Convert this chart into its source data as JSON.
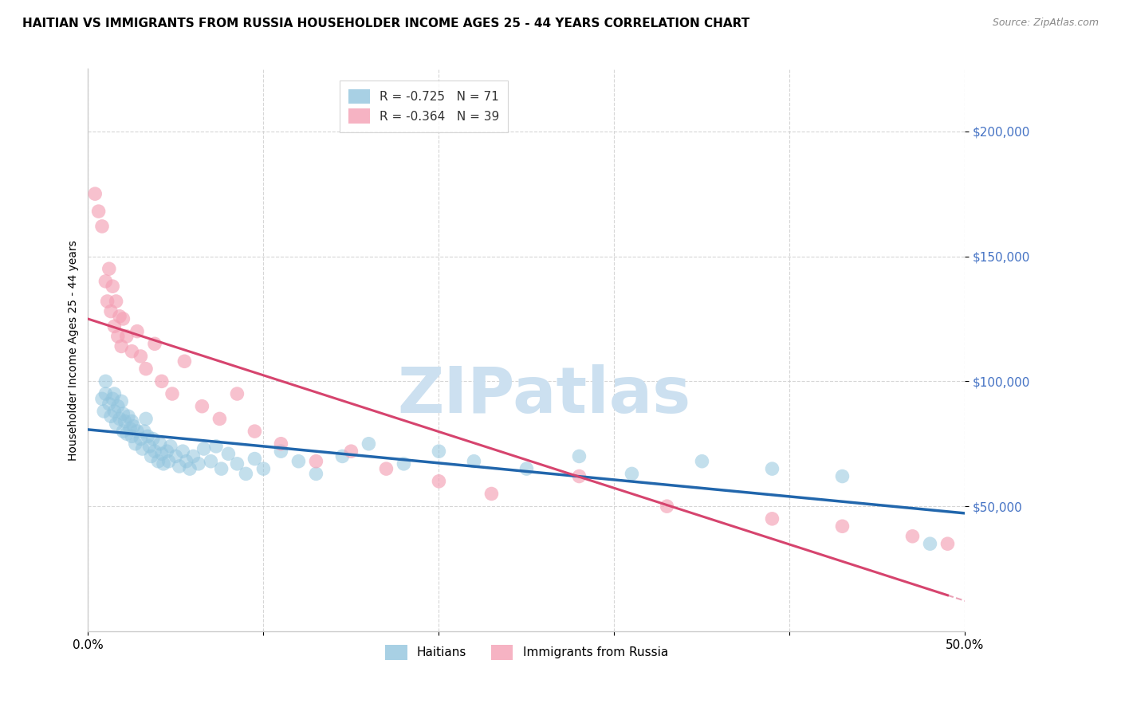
{
  "title": "HAITIAN VS IMMIGRANTS FROM RUSSIA HOUSEHOLDER INCOME AGES 25 - 44 YEARS CORRELATION CHART",
  "source": "Source: ZipAtlas.com",
  "ylabel": "Householder Income Ages 25 - 44 years",
  "ytick_values": [
    50000,
    100000,
    150000,
    200000
  ],
  "ymin": 0,
  "ymax": 225000,
  "xmin": 0.0,
  "xmax": 0.5,
  "watermark_text": "ZIPatlas",
  "blue_color": "#92c5de",
  "pink_color": "#f4a0b5",
  "trendline_blue": "#2166ac",
  "trendline_pink": "#d6446e",
  "scatter_blue_alpha": 0.55,
  "scatter_pink_alpha": 0.65,
  "haitian_x": [
    0.008,
    0.009,
    0.01,
    0.01,
    0.012,
    0.013,
    0.014,
    0.015,
    0.015,
    0.016,
    0.017,
    0.018,
    0.019,
    0.02,
    0.02,
    0.021,
    0.022,
    0.023,
    0.024,
    0.025,
    0.025,
    0.026,
    0.027,
    0.028,
    0.03,
    0.031,
    0.032,
    0.033,
    0.034,
    0.035,
    0.036,
    0.037,
    0.038,
    0.04,
    0.041,
    0.042,
    0.043,
    0.045,
    0.046,
    0.047,
    0.05,
    0.052,
    0.054,
    0.056,
    0.058,
    0.06,
    0.063,
    0.066,
    0.07,
    0.073,
    0.076,
    0.08,
    0.085,
    0.09,
    0.095,
    0.1,
    0.11,
    0.12,
    0.13,
    0.145,
    0.16,
    0.18,
    0.2,
    0.22,
    0.25,
    0.28,
    0.31,
    0.35,
    0.39,
    0.43,
    0.48
  ],
  "haitian_y": [
    93000,
    88000,
    95000,
    100000,
    91000,
    86000,
    93000,
    88000,
    95000,
    83000,
    90000,
    85000,
    92000,
    80000,
    87000,
    84000,
    79000,
    86000,
    81000,
    78000,
    84000,
    82000,
    75000,
    80000,
    77000,
    73000,
    80000,
    85000,
    78000,
    74000,
    70000,
    77000,
    72000,
    68000,
    75000,
    71000,
    67000,
    72000,
    68000,
    74000,
    70000,
    66000,
    72000,
    68000,
    65000,
    70000,
    67000,
    73000,
    68000,
    74000,
    65000,
    71000,
    67000,
    63000,
    69000,
    65000,
    72000,
    68000,
    63000,
    70000,
    75000,
    67000,
    72000,
    68000,
    65000,
    70000,
    63000,
    68000,
    65000,
    62000,
    35000
  ],
  "russia_x": [
    0.004,
    0.006,
    0.008,
    0.01,
    0.011,
    0.012,
    0.013,
    0.014,
    0.015,
    0.016,
    0.017,
    0.018,
    0.019,
    0.02,
    0.022,
    0.025,
    0.028,
    0.03,
    0.033,
    0.038,
    0.042,
    0.048,
    0.055,
    0.065,
    0.075,
    0.085,
    0.095,
    0.11,
    0.13,
    0.15,
    0.17,
    0.2,
    0.23,
    0.28,
    0.33,
    0.39,
    0.43,
    0.47,
    0.49
  ],
  "russia_y": [
    175000,
    168000,
    162000,
    140000,
    132000,
    145000,
    128000,
    138000,
    122000,
    132000,
    118000,
    126000,
    114000,
    125000,
    118000,
    112000,
    120000,
    110000,
    105000,
    115000,
    100000,
    95000,
    108000,
    90000,
    85000,
    95000,
    80000,
    75000,
    68000,
    72000,
    65000,
    60000,
    55000,
    62000,
    50000,
    45000,
    42000,
    38000,
    35000
  ],
  "background_color": "#ffffff",
  "grid_color": "#cccccc",
  "title_fontsize": 11,
  "source_fontsize": 9,
  "tick_color": "#4472c4"
}
